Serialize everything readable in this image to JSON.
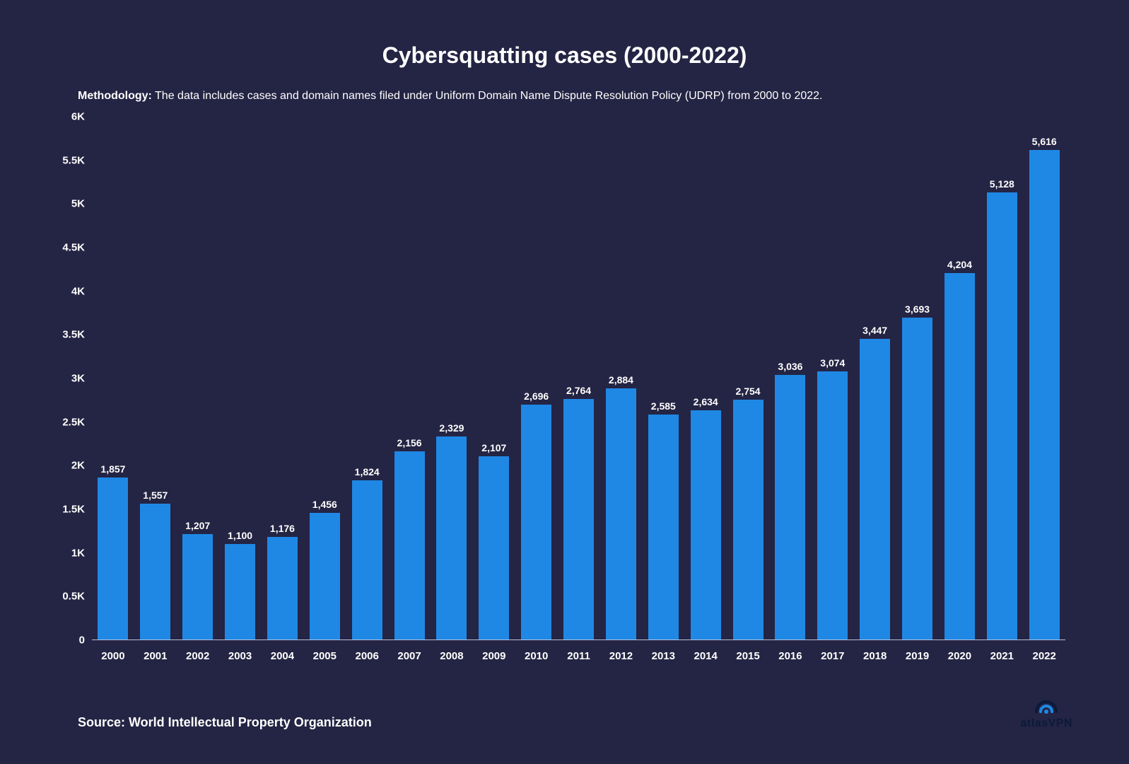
{
  "chart": {
    "type": "bar",
    "title": "Cybersquatting cases (2000-2022)",
    "title_fontsize": 32,
    "title_color": "#ffffff",
    "methodology_label": "Methodology:",
    "methodology_text": "The data includes cases and domain names filed under Uniform Domain Name Dispute Resolution Policy (UDRP) from 2000 to 2022.",
    "methodology_fontsize": 16,
    "methodology_color": "#ffffff",
    "background_color": "#242444",
    "bar_color": "#1f88e5",
    "axis_text_color": "#ffffff",
    "axis_line_color": "#b9c1d8",
    "bar_label_color": "#ffffff",
    "bar_label_fontsize": 14,
    "x_label_fontsize": 15,
    "y_label_fontsize": 15,
    "ylim": [
      0,
      6000
    ],
    "yticks": [
      {
        "v": 0,
        "label": "0"
      },
      {
        "v": 500,
        "label": "0.5K"
      },
      {
        "v": 1000,
        "label": "1K"
      },
      {
        "v": 1500,
        "label": "1.5K"
      },
      {
        "v": 2000,
        "label": "2K"
      },
      {
        "v": 2500,
        "label": "2.5K"
      },
      {
        "v": 3000,
        "label": "3K"
      },
      {
        "v": 3500,
        "label": "3.5K"
      },
      {
        "v": 4000,
        "label": "4K"
      },
      {
        "v": 4500,
        "label": "4.5K"
      },
      {
        "v": 5000,
        "label": "5K"
      },
      {
        "v": 5500,
        "label": "5.5K"
      },
      {
        "v": 6000,
        "label": "6K"
      }
    ],
    "categories": [
      "2000",
      "2001",
      "2002",
      "2003",
      "2004",
      "2005",
      "2006",
      "2007",
      "2008",
      "2009",
      "2010",
      "2011",
      "2012",
      "2013",
      "2014",
      "2015",
      "2016",
      "2017",
      "2018",
      "2019",
      "2020",
      "2021",
      "2022"
    ],
    "values": [
      1857,
      1557,
      1207,
      1100,
      1176,
      1456,
      1824,
      2156,
      2329,
      2107,
      2696,
      2764,
      2884,
      2585,
      2634,
      2754,
      3036,
      3074,
      3447,
      3693,
      4204,
      5128,
      5616
    ],
    "value_labels": [
      "1,857",
      "1,557",
      "1,207",
      "1,100",
      "1,176",
      "1,456",
      "1,824",
      "2,156",
      "2,329",
      "2,107",
      "2,696",
      "2,764",
      "2,884",
      "2,585",
      "2,634",
      "2,754",
      "3,036",
      "3,074",
      "3,447",
      "3,693",
      "4,204",
      "5,128",
      "5,616"
    ],
    "bar_width_ratio": 0.72
  },
  "footer": {
    "source_text": "Source: World Intellectual Property Organization",
    "source_fontsize": 18,
    "source_color": "#ffffff",
    "logo_text": "atlasVPN",
    "logo_fontsize": 16,
    "logo_color": "#0b1a3a",
    "logo_icon_color": "#1f88e5"
  }
}
